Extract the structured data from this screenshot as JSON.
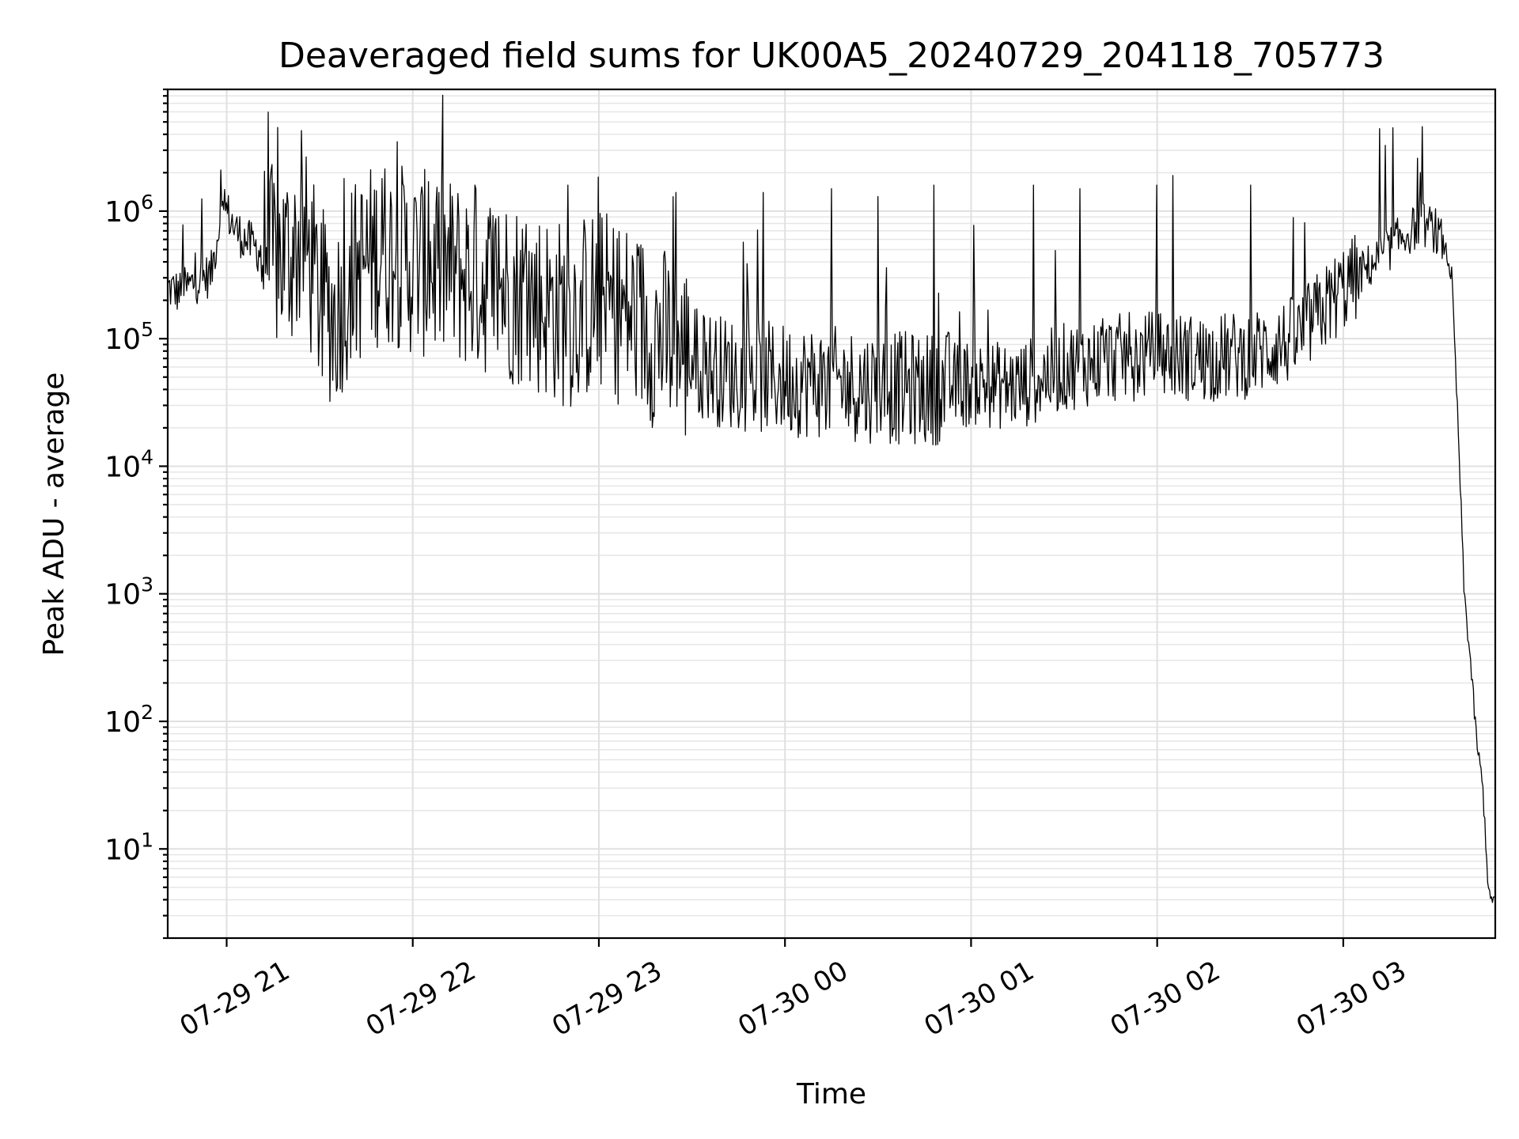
{
  "chart_data": {
    "type": "line",
    "title": "Deaveraged field sums for UK00A5_20240729_204118_705773",
    "xlabel": "Time",
    "ylabel": "Peak ADU - average",
    "yscale": "log",
    "xlim": [
      "2024-07-29 20:41",
      "2024-07-30 03:49"
    ],
    "ylim": [
      2,
      9000000
    ],
    "x_ticks": [
      {
        "t": "2024-07-29 21:00",
        "label": "07-29 21"
      },
      {
        "t": "2024-07-29 22:00",
        "label": "07-29 22"
      },
      {
        "t": "2024-07-29 23:00",
        "label": "07-29 23"
      },
      {
        "t": "2024-07-30 00:00",
        "label": "07-30 00"
      },
      {
        "t": "2024-07-30 01:00",
        "label": "07-30 01"
      },
      {
        "t": "2024-07-30 02:00",
        "label": "07-30 02"
      },
      {
        "t": "2024-07-30 03:00",
        "label": "07-30 03"
      }
    ],
    "y_ticks": [
      {
        "value": 10,
        "base": "10",
        "exp": "1"
      },
      {
        "value": 100,
        "base": "10",
        "exp": "2"
      },
      {
        "value": 1000,
        "base": "10",
        "exp": "3"
      },
      {
        "value": 10000,
        "base": "10",
        "exp": "4"
      },
      {
        "value": 100000,
        "base": "10",
        "exp": "5"
      },
      {
        "value": 1000000,
        "base": "10",
        "exp": "6"
      }
    ],
    "grid": true,
    "line_color": "#000000",
    "series": [
      {
        "x": [
          "2024-07-29 20:41",
          "2024-07-29 20:45",
          "2024-07-29 20:50",
          "2024-07-29 20:55",
          "2024-07-29 20:58",
          "2024-07-29 21:00",
          "2024-07-29 21:03",
          "2024-07-29 21:06",
          "2024-07-29 21:10",
          "2024-07-29 21:15",
          "2024-07-29 21:20",
          "2024-07-29 21:25",
          "2024-07-29 21:30",
          "2024-07-29 21:35",
          "2024-07-29 21:40",
          "2024-07-29 21:45",
          "2024-07-29 21:50",
          "2024-07-29 21:55",
          "2024-07-29 22:00",
          "2024-07-29 22:10",
          "2024-07-29 22:20",
          "2024-07-29 22:30",
          "2024-07-29 22:40",
          "2024-07-29 22:50",
          "2024-07-29 23:00",
          "2024-07-29 23:10",
          "2024-07-29 23:20",
          "2024-07-29 23:30",
          "2024-07-29 23:40",
          "2024-07-29 23:50",
          "2024-07-30 00:00",
          "2024-07-30 00:15",
          "2024-07-30 00:30",
          "2024-07-30 00:45",
          "2024-07-30 01:00",
          "2024-07-30 01:15",
          "2024-07-30 01:30",
          "2024-07-30 01:45",
          "2024-07-30 02:00",
          "2024-07-30 02:15",
          "2024-07-30 02:30",
          "2024-07-30 02:45",
          "2024-07-30 03:00",
          "2024-07-30 03:10",
          "2024-07-30 03:18",
          "2024-07-30 03:25",
          "2024-07-30 03:30",
          "2024-07-30 03:33",
          "2024-07-30 03:35",
          "2024-07-30 03:37",
          "2024-07-30 03:39",
          "2024-07-30 03:41",
          "2024-07-30 03:43",
          "2024-07-30 03:45",
          "2024-07-30 03:47",
          "2024-07-30 03:49"
        ],
        "values": [
          250000,
          230000,
          280000,
          320000,
          900000,
          1000000,
          700000,
          600000,
          500000,
          420000,
          450000,
          600000,
          200000,
          150000,
          300000,
          400000,
          500000,
          450000,
          400000,
          350000,
          300000,
          250000,
          200000,
          150000,
          200000,
          150000,
          100000,
          70000,
          55000,
          50000,
          48000,
          45000,
          42000,
          40000,
          45000,
          42000,
          60000,
          70000,
          75000,
          70000,
          75000,
          100000,
          250000,
          400000,
          600000,
          800000,
          700000,
          500000,
          300000,
          20000,
          1000,
          300,
          70,
          30,
          4,
          4
        ],
        "spikes": [
          {
            "t": "2024-07-29 20:46",
            "v": 780000
          },
          {
            "t": "2024-07-29 20:58",
            "v": 2100000
          },
          {
            "t": "2024-07-29 21:38",
            "v": 1800000
          },
          {
            "t": "2024-07-29 21:50",
            "v": 1800000
          },
          {
            "t": "2024-07-29 22:05",
            "v": 1700000
          },
          {
            "t": "2024-07-29 22:20",
            "v": 1600000
          },
          {
            "t": "2024-07-29 22:50",
            "v": 1600000
          },
          {
            "t": "2024-07-29 23:25",
            "v": 1400000
          },
          {
            "t": "2024-07-29 23:53",
            "v": 1400000
          },
          {
            "t": "2024-07-30 00:15",
            "v": 1500000
          },
          {
            "t": "2024-07-30 00:30",
            "v": 1300000
          },
          {
            "t": "2024-07-30 00:48",
            "v": 1600000
          },
          {
            "t": "2024-07-30 01:20",
            "v": 1600000
          },
          {
            "t": "2024-07-30 01:35",
            "v": 1500000
          },
          {
            "t": "2024-07-30 02:00",
            "v": 1600000
          },
          {
            "t": "2024-07-30 02:05",
            "v": 1900000
          },
          {
            "t": "2024-07-30 02:30",
            "v": 1600000
          },
          {
            "t": "2024-07-30 03:16",
            "v": 4500000
          },
          {
            "t": "2024-07-30 03:24",
            "v": 2600000
          }
        ]
      }
    ]
  }
}
